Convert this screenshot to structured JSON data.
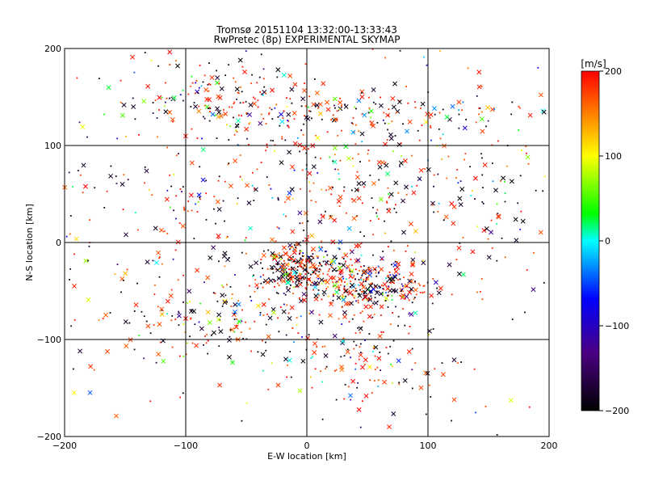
{
  "chart_data": {
    "type": "scatter",
    "title": "Tromsø 20151104 13:32:00-13:33:43",
    "subtitle": "RwPretec (8p) EXPERIMENTAL SKYMAP",
    "xlabel": "E-W location [km]",
    "ylabel": "N-S location [km]",
    "xlim": [
      -200,
      200
    ],
    "ylim": [
      -200,
      200
    ],
    "xticks": [
      -200,
      -100,
      0,
      100,
      200
    ],
    "yticks": [
      -200,
      -100,
      0,
      100,
      200
    ],
    "grid": true,
    "colorbar": {
      "label": "[m/s]",
      "min": -200,
      "max": 200,
      "ticks": [
        200,
        100,
        0,
        -100,
        -200
      ],
      "colors": [
        "#000000",
        "#4b0082",
        "#0000ff",
        "#00ffff",
        "#00ff00",
        "#ffff00",
        "#ff0000"
      ]
    },
    "point_density_clusters": [
      {
        "x": -5,
        "y": -25,
        "spread_x": 18,
        "spread_y": 12,
        "weight": 260
      },
      {
        "x": 45,
        "y": -45,
        "spread_x": 30,
        "spread_y": 15,
        "weight": 320
      },
      {
        "x": 30,
        "y": 135,
        "spread_x": 70,
        "spread_y": 12,
        "weight": 160
      },
      {
        "x": -70,
        "y": 150,
        "spread_x": 35,
        "spread_y": 20,
        "weight": 120
      },
      {
        "x": 20,
        "y": 60,
        "spread_x": 60,
        "spread_y": 40,
        "weight": 220
      },
      {
        "x": -60,
        "y": -80,
        "spread_x": 40,
        "spread_y": 25,
        "weight": 140
      },
      {
        "x": 40,
        "y": -120,
        "spread_x": 35,
        "spread_y": 25,
        "weight": 120
      },
      {
        "x": 120,
        "y": 60,
        "spread_x": 50,
        "spread_y": 60,
        "weight": 140
      },
      {
        "x": -130,
        "y": 0,
        "spread_x": 45,
        "spread_y": 80,
        "weight": 150
      },
      {
        "x": 0,
        "y": 0,
        "spread_x": 160,
        "spread_y": 160,
        "weight": 300
      }
    ]
  }
}
